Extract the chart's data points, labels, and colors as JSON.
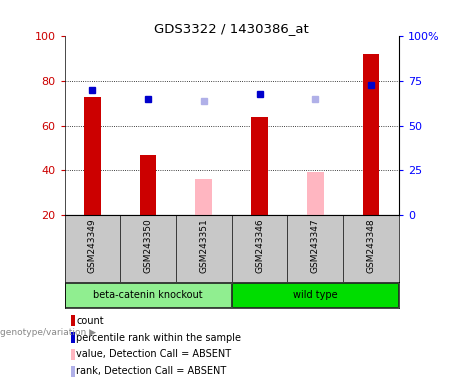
{
  "title": "GDS3322 / 1430386_at",
  "samples": [
    "GSM243349",
    "GSM243350",
    "GSM243351",
    "GSM243346",
    "GSM243347",
    "GSM243348"
  ],
  "groups": [
    "beta-catenin knockout",
    "beta-catenin knockout",
    "beta-catenin knockout",
    "wild type",
    "wild type",
    "wild type"
  ],
  "absent": [
    false,
    false,
    true,
    false,
    true,
    false
  ],
  "bar_values": [
    73,
    47,
    36,
    64,
    39,
    92
  ],
  "bar_colors_present": "#CC0000",
  "bar_colors_absent": "#FFB6C1",
  "rank_values": [
    70,
    65,
    64,
    68,
    65,
    73
  ],
  "rank_colors_present": "#0000CC",
  "rank_colors_absent": "#B0B0E8",
  "ylim_left": [
    20,
    100
  ],
  "yticks_left": [
    20,
    40,
    60,
    80,
    100
  ],
  "ytick_labels_right": [
    "0",
    "25",
    "50",
    "75",
    "100%"
  ],
  "group_label": "genotype/variation",
  "group1_label": "beta-catenin knockout",
  "group2_label": "wild type",
  "group1_color": "#90EE90",
  "group2_color": "#00DD00",
  "legend_items": [
    {
      "label": "count",
      "color": "#CC0000"
    },
    {
      "label": "percentile rank within the sample",
      "color": "#0000CC"
    },
    {
      "label": "value, Detection Call = ABSENT",
      "color": "#FFB6C1"
    },
    {
      "label": "rank, Detection Call = ABSENT",
      "color": "#B0B0E8"
    }
  ],
  "bg_color": "#FFFFFF",
  "xlabel_color": "#CC0000",
  "ylabel_right_color": "#0000FF",
  "sample_bg_color": "#C8C8C8",
  "bar_width": 0.3
}
